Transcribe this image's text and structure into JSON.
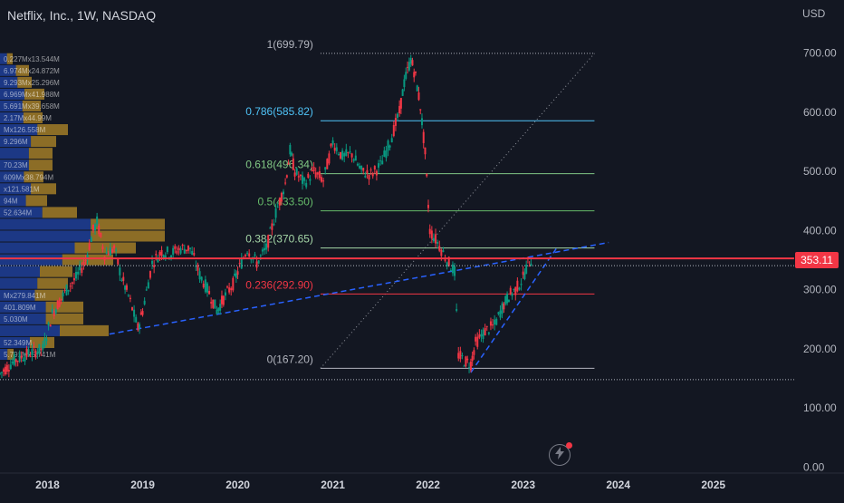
{
  "header": {
    "symbol_title": "Netflix, Inc., 1W, NASDAQ",
    "currency": "USD"
  },
  "colors": {
    "background": "#131722",
    "current_price_line": "#f23645",
    "fib_0786": "#4fc3f7",
    "fib_0618": "#81c784",
    "fib_05": "#66bb6a",
    "fib_0382": "#a5d6a7",
    "fib_0236": "#f23645",
    "trendline": "#2962ff",
    "volume_profile_up": "#2962ff",
    "volume_profile_down": "#f0b429"
  },
  "current_price": "353.11",
  "chart_data": {
    "type": "candlestick",
    "title": "Netflix, Inc., 1W, NASDAQ",
    "y_unit": "USD",
    "ylim": [
      -10,
      790
    ],
    "xlim": [
      2017.5,
      2025.85
    ],
    "y_ticks": [
      "700.00",
      "600.00",
      "500.00",
      "400.00",
      "300.00",
      "200.00",
      "100.00",
      "0.00"
    ],
    "x_ticks": [
      "2018",
      "2019",
      "2020",
      "2021",
      "2022",
      "2023",
      "2024",
      "2025"
    ],
    "price_path": [
      [
        2017.5,
        158
      ],
      [
        2017.65,
        180
      ],
      [
        2017.8,
        192
      ],
      [
        2017.95,
        200
      ],
      [
        2018.05,
        260
      ],
      [
        2018.2,
        300
      ],
      [
        2018.3,
        320
      ],
      [
        2018.4,
        350
      ],
      [
        2018.48,
        400
      ],
      [
        2018.52,
        415
      ],
      [
        2018.6,
        360
      ],
      [
        2018.7,
        370
      ],
      [
        2018.78,
        320
      ],
      [
        2018.85,
        290
      ],
      [
        2018.95,
        235
      ],
      [
        2019.0,
        265
      ],
      [
        2019.1,
        345
      ],
      [
        2019.2,
        365
      ],
      [
        2019.3,
        362
      ],
      [
        2019.4,
        370
      ],
      [
        2019.5,
        370
      ],
      [
        2019.6,
        325
      ],
      [
        2019.7,
        295
      ],
      [
        2019.78,
        265
      ],
      [
        2019.85,
        285
      ],
      [
        2019.95,
        310
      ],
      [
        2020.0,
        330
      ],
      [
        2020.1,
        370
      ],
      [
        2020.2,
        345
      ],
      [
        2020.3,
        370
      ],
      [
        2020.4,
        430
      ],
      [
        2020.5,
        480
      ],
      [
        2020.55,
        535
      ],
      [
        2020.6,
        500
      ],
      [
        2020.7,
        480
      ],
      [
        2020.8,
        500
      ],
      [
        2020.9,
        485
      ],
      [
        2021.0,
        550
      ],
      [
        2021.1,
        525
      ],
      [
        2021.2,
        530
      ],
      [
        2021.3,
        500
      ],
      [
        2021.4,
        495
      ],
      [
        2021.5,
        510
      ],
      [
        2021.6,
        550
      ],
      [
        2021.7,
        600
      ],
      [
        2021.75,
        650
      ],
      [
        2021.82,
        690
      ],
      [
        2021.87,
        660
      ],
      [
        2021.92,
        610
      ],
      [
        2021.97,
        530
      ],
      [
        2022.02,
        400
      ],
      [
        2022.1,
        380
      ],
      [
        2022.2,
        350
      ],
      [
        2022.28,
        330
      ],
      [
        2022.32,
        190
      ],
      [
        2022.38,
        180
      ],
      [
        2022.45,
        175
      ],
      [
        2022.5,
        210
      ],
      [
        2022.6,
        230
      ],
      [
        2022.7,
        240
      ],
      [
        2022.78,
        270
      ],
      [
        2022.85,
        290
      ],
      [
        2022.92,
        300
      ],
      [
        2023.0,
        320
      ],
      [
        2023.05,
        345
      ],
      [
        2023.1,
        353
      ]
    ],
    "fibonacci": {
      "levels": [
        {
          "ratio": "1",
          "price": 699.79,
          "label": "1(699.79)"
        },
        {
          "ratio": "0.786",
          "price": 585.82,
          "label": "0.786(585.82)"
        },
        {
          "ratio": "0.618",
          "price": 496.34,
          "label": "0.618(496.34)"
        },
        {
          "ratio": "0.5",
          "price": 433.5,
          "label": "0.5(433.50)"
        },
        {
          "ratio": "0.382",
          "price": 370.65,
          "label": "0.382(370.65)"
        },
        {
          "ratio": "0.236",
          "price": 292.9,
          "label": "0.236(292.90)"
        },
        {
          "ratio": "0",
          "price": 167.2,
          "label": "0(167.20)"
        }
      ],
      "x_start": 2020.87,
      "x_end": 2023.75
    },
    "trendlines": [
      {
        "x1": 2018.65,
        "y1": 225,
        "x2": 2023.9,
        "y2": 380
      },
      {
        "x1": 2022.45,
        "y1": 160,
        "x2": 2023.35,
        "y2": 370
      }
    ],
    "horizontal_lines": [
      {
        "price": 353.11,
        "style": "solid",
        "label": "353.11"
      },
      {
        "price": 148,
        "style": "dotted"
      }
    ],
    "volume_profile": [
      {
        "price_min": 680,
        "price_max": 700,
        "label": "0.227Mx13.544M",
        "value": 14
      },
      {
        "price_min": 660,
        "price_max": 680,
        "label": "6.974Mx24.872M",
        "value": 32
      },
      {
        "price_min": 640,
        "price_max": 660,
        "label": "9.293Mx25.296M",
        "value": 35
      },
      {
        "price_min": 620,
        "price_max": 640,
        "label": "6.969Mx41.988M",
        "value": 49
      },
      {
        "price_min": 600,
        "price_max": 620,
        "label": "5.691Mx39.658M",
        "value": 45
      },
      {
        "price_min": 580,
        "price_max": 600,
        "label": "2.17Mx44.99M",
        "value": 47
      },
      {
        "price_min": 560,
        "price_max": 580,
        "label": "Mx126.558M",
        "value": 75
      },
      {
        "price_min": 540,
        "price_max": 560,
        "label": "9.296M",
        "value": 62
      },
      {
        "price_min": 520,
        "price_max": 540,
        "label": "",
        "value": 58
      },
      {
        "price_min": 500,
        "price_max": 520,
        "label": "70.23M",
        "value": 58
      },
      {
        "price_min": 480,
        "price_max": 500,
        "label": "609Mx38.794M",
        "value": 48
      },
      {
        "price_min": 460,
        "price_max": 480,
        "label": "x121.581M",
        "value": 62
      },
      {
        "price_min": 440,
        "price_max": 460,
        "label": "94M",
        "value": 52
      },
      {
        "price_min": 420,
        "price_max": 440,
        "label": "52.634M",
        "value": 85
      },
      {
        "price_min": 400,
        "price_max": 420,
        "label": "",
        "value": 182
      },
      {
        "price_min": 380,
        "price_max": 400,
        "label": "",
        "value": 182
      },
      {
        "price_min": 360,
        "price_max": 380,
        "label": "",
        "value": 150
      },
      {
        "price_min": 340,
        "price_max": 360,
        "label": "",
        "value": 125
      },
      {
        "price_min": 320,
        "price_max": 340,
        "label": "",
        "value": 80
      },
      {
        "price_min": 300,
        "price_max": 320,
        "label": "",
        "value": 75
      },
      {
        "price_min": 280,
        "price_max": 300,
        "label": "Mx279.841M",
        "value": 70
      },
      {
        "price_min": 260,
        "price_max": 280,
        "label": "401.809M",
        "value": 92
      },
      {
        "price_min": 240,
        "price_max": 260,
        "label": "5.030M",
        "value": 92
      },
      {
        "price_min": 220,
        "price_max": 240,
        "label": "",
        "value": 120
      },
      {
        "price_min": 200,
        "price_max": 220,
        "label": "52.349M",
        "value": 60
      },
      {
        "price_min": 180,
        "price_max": 200,
        "label": "5.791Mx5.741M",
        "value": 15
      }
    ]
  }
}
